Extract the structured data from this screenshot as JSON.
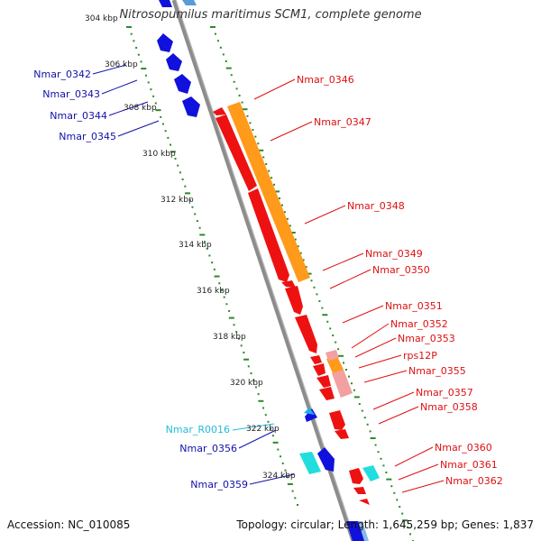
{
  "title": "Nitrosopumilus maritimus SCM1, complete genome",
  "footer": {
    "accession": "Accession: NC_010085",
    "summary": "Topology: circular; Length: 1,645,259 bp; Genes: 1,837"
  },
  "colors": {
    "backbone": "#8c8c8c",
    "ticks": "#2a8a2a",
    "forward_cds": "#ee1111",
    "reverse_cds": "#1111dd",
    "rna": "#22dddd",
    "misc_orange": "#ff9a1a",
    "misc_pink": "#f2a0a0",
    "label_forward": "#dd1111",
    "label_reverse": "#1111aa",
    "label_rna": "#22bbdd"
  },
  "scale_labels": [
    "304 kbp",
    "306 kbp",
    "308 kbp",
    "310 kbp",
    "312 kbp",
    "314 kbp",
    "316 kbp",
    "318 kbp",
    "320 kbp",
    "322 kbp",
    "324 kbp"
  ],
  "forward_genes": [
    "Nmar_0346",
    "Nmar_0347",
    "Nmar_0348",
    "Nmar_0349",
    "Nmar_0350",
    "Nmar_0351",
    "Nmar_0352",
    "Nmar_0353",
    "rps12P",
    "Nmar_0355",
    "Nmar_0357",
    "Nmar_0358",
    "Nmar_0360",
    "Nmar_0361",
    "Nmar_0362"
  ],
  "reverse_genes": [
    "Nmar_0342",
    "Nmar_0343",
    "Nmar_0344",
    "Nmar_0345",
    "Nmar_0356",
    "Nmar_0359"
  ],
  "rna_genes": [
    "Nmar_R0016"
  ]
}
